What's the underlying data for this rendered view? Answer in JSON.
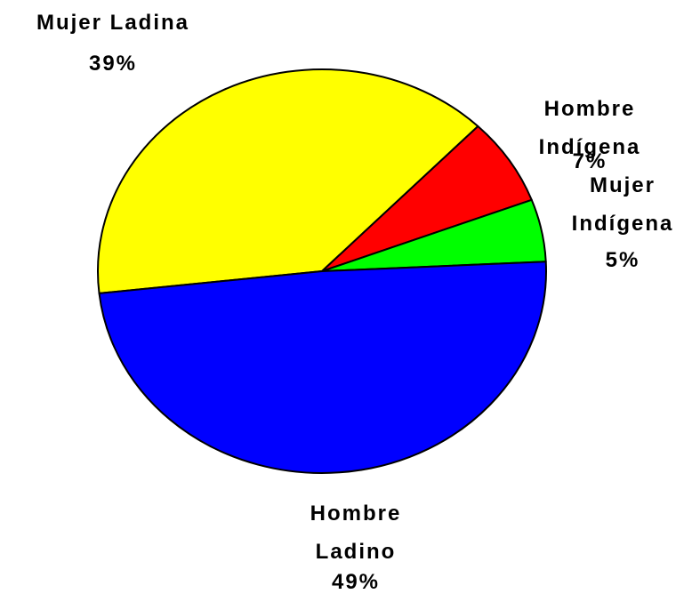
{
  "chart_data": {
    "type": "pie",
    "categories": [
      "Mujer Ladina",
      "Hombre Indígena",
      "Mujer Indígena",
      "Hombre Ladino"
    ],
    "values": [
      39,
      7,
      5,
      49
    ],
    "value_labels": [
      "39%",
      "7%",
      "5%",
      "49%"
    ],
    "colors": [
      "#ffff00",
      "#ff0000",
      "#00ff00",
      "#0000ff"
    ]
  }
}
